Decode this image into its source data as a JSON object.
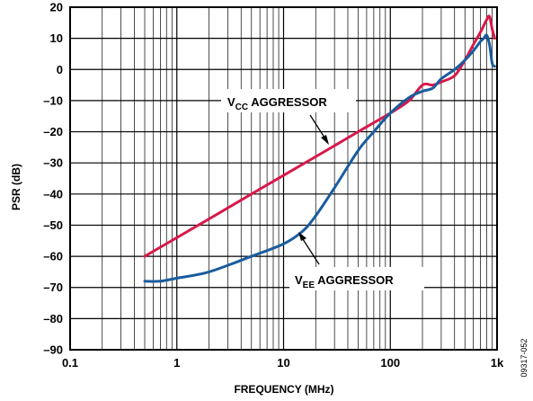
{
  "chart_data": {
    "type": "line",
    "title": "",
    "xlabel": "FREQUENCY (MHz)",
    "ylabel": "PSR (dB)",
    "x_scale": "log",
    "xlim": [
      0.1,
      1000
    ],
    "ylim": [
      -90,
      20
    ],
    "x_ticks": [
      0.1,
      1,
      10,
      100,
      1000
    ],
    "x_tick_labels": [
      "0.1",
      "1",
      "10",
      "100",
      "1k"
    ],
    "y_ticks": [
      20,
      10,
      0,
      -10,
      -20,
      -30,
      -40,
      -50,
      -60,
      -70,
      -80,
      -90
    ],
    "y_tick_labels": [
      "20",
      "10",
      "0",
      "–10",
      "–20",
      "–30",
      "–40",
      "–50",
      "–60",
      "–70",
      "–80",
      "–90"
    ],
    "grid": true,
    "series": [
      {
        "name": "V_CC AGGRESSOR",
        "color": "#d7194a",
        "x": [
          0.5,
          1,
          2,
          5,
          10,
          20,
          50,
          100,
          150,
          200,
          250,
          300,
          400,
          500,
          600,
          700,
          800,
          850,
          900,
          950
        ],
        "y": [
          -60,
          -54,
          -48,
          -40,
          -34,
          -28,
          -20,
          -14,
          -10,
          -5,
          -5,
          -4,
          -2,
          3,
          8,
          12,
          16,
          17,
          13,
          10
        ]
      },
      {
        "name": "V_EE AGGRESSOR",
        "color": "#1a5c9e",
        "x": [
          0.5,
          0.7,
          1,
          2,
          5,
          10,
          15,
          20,
          30,
          50,
          70,
          100,
          150,
          200,
          250,
          300,
          400,
          500,
          600,
          700,
          750,
          800,
          850,
          900,
          950
        ],
        "y": [
          -68,
          -68,
          -67,
          -65,
          -60,
          -56,
          -52,
          -47,
          -38,
          -26,
          -20,
          -14,
          -9,
          -7,
          -6,
          -3,
          0,
          3,
          6,
          9,
          10,
          11,
          8,
          2,
          1
        ]
      }
    ],
    "annotations": [
      {
        "base": "V",
        "sub": "CC",
        "rest": " AGGRESSOR"
      },
      {
        "base": "V",
        "sub": "EE",
        "rest": " AGGRESSOR"
      }
    ],
    "figure_id": "09317-052"
  }
}
